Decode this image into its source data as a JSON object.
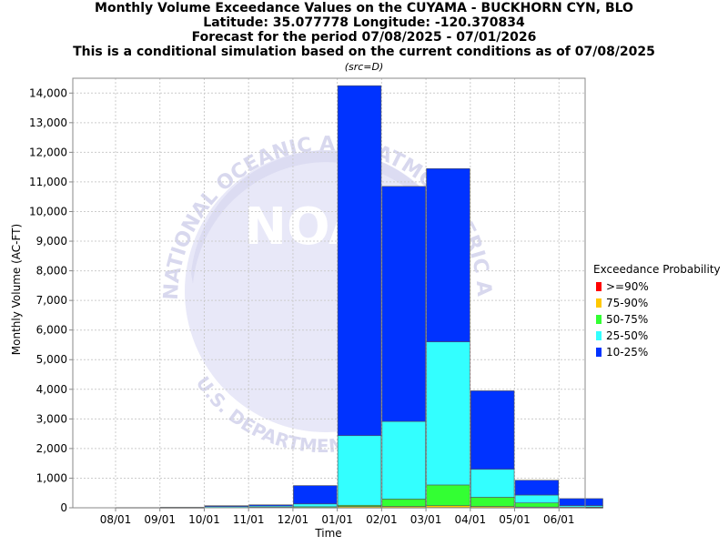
{
  "header": {
    "title_lines": [
      "Monthly Volume Exceedance Values on the CUYAMA - BUCKHORN CYN, BLO",
      "Latitude: 35.077778 Longitude: -120.370834",
      "Forecast for the period 07/08/2025 - 07/01/2026",
      "This is a conditional simulation based on the current conditions as of 07/08/2025"
    ],
    "subtitle": "(src=D)"
  },
  "watermark": {
    "logo_text": "NOAA",
    "ring_text": "NATIONAL OCEANIC AND ATMOSPHERIC ADMINISTRATION",
    "bottom_text": "U.S. DEPARTMENT OF COMMERCE"
  },
  "legend": {
    "title": "Exceedance Probability"
  },
  "chart_data": {
    "type": "bar",
    "stacked": true,
    "xlabel": "Time",
    "ylabel": "Monthly Volume (AC-FT)",
    "ylim": [
      0,
      14500
    ],
    "yticks": [
      0,
      1000,
      2000,
      3000,
      4000,
      5000,
      6000,
      7000,
      8000,
      9000,
      10000,
      11000,
      12000,
      13000,
      14000
    ],
    "ytick_labels": [
      "0",
      "1,000",
      "2,000",
      "3,000",
      "4,000",
      "5,000",
      "6,000",
      "7,000",
      "8,000",
      "9,000",
      "10,000",
      "11,000",
      "12,000",
      "13,000",
      "14,000"
    ],
    "xtick_labels": [
      "08/01",
      "09/01",
      "10/01",
      "11/01",
      "12/01",
      "01/01",
      "02/01",
      "03/01",
      "04/01",
      "05/01",
      "06/01"
    ],
    "categories": [
      "08/01",
      "09/01",
      "10/01",
      "11/01",
      "12/01",
      "01/01",
      "02/01",
      "03/01",
      "04/01",
      "05/01",
      "06/01"
    ],
    "grid": true,
    "legend_position": "right",
    "series": [
      {
        "name": ">=90%",
        "color": "#ff0000",
        "values": [
          0,
          0,
          0,
          0,
          0,
          5,
          5,
          10,
          5,
          5,
          0
        ]
      },
      {
        "name": "75-90%",
        "color": "#ffc800",
        "values": [
          0,
          0,
          0,
          0,
          5,
          40,
          40,
          60,
          40,
          20,
          5
        ]
      },
      {
        "name": "50-75%",
        "color": "#33ff33",
        "values": [
          0,
          2,
          10,
          20,
          30,
          40,
          250,
          700,
          310,
          140,
          20
        ]
      },
      {
        "name": "25-50%",
        "color": "#33ffff",
        "values": [
          5,
          5,
          30,
          40,
          95,
          2350,
          2620,
          4830,
          945,
          265,
          45
        ]
      },
      {
        "name": "10-25%",
        "color": "#0033ff",
        "values": [
          5,
          13,
          30,
          40,
          620,
          11815,
          7935,
          5850,
          2650,
          500,
          240
        ]
      }
    ]
  }
}
